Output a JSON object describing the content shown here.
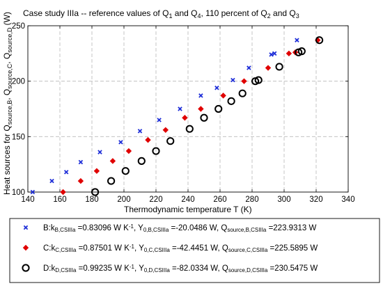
{
  "chart_data": {
    "type": "scatter",
    "title": {
      "parts": [
        {
          "t": "Case study IIIa -- reference values of Q",
          "s": ""
        },
        {
          "t": "1",
          "s": "sub"
        },
        {
          "t": " and Q",
          "s": ""
        },
        {
          "t": "4",
          "s": "sub"
        },
        {
          "t": ", 110 percent of Q",
          "s": ""
        },
        {
          "t": "2",
          "s": "sub"
        },
        {
          "t": " and Q",
          "s": ""
        },
        {
          "t": "3",
          "s": "sub"
        }
      ]
    },
    "xlabel": "Thermodynamic temperature T (K)",
    "ylabel": {
      "parts": [
        {
          "t": "Heat sources for Q",
          "s": ""
        },
        {
          "t": "source,B",
          "s": "sub"
        },
        {
          "t": ", Q",
          "s": ""
        },
        {
          "t": "source,C",
          "s": "sub"
        },
        {
          "t": ", Q",
          "s": ""
        },
        {
          "t": "source,D",
          "s": "sub"
        },
        {
          "t": " (W)",
          "s": ""
        }
      ]
    },
    "xlim": [
      140,
      340
    ],
    "ylim": [
      100,
      250
    ],
    "xticks": [
      140,
      160,
      180,
      200,
      220,
      240,
      260,
      280,
      300,
      320,
      340
    ],
    "yticks": [
      100,
      150,
      200,
      250
    ],
    "grid": true,
    "legend_position": "below",
    "series": [
      {
        "key": "B",
        "marker": "x",
        "color": "#1f2fd8",
        "legend_parts": [
          {
            "t": "B:k",
            "s": ""
          },
          {
            "t": "B,CSIIIa",
            "s": "sub"
          },
          {
            "t": " =0.83096 W K",
            "s": ""
          },
          {
            "t": "-1",
            "s": "sup"
          },
          {
            "t": ", Y",
            "s": ""
          },
          {
            "t": "0,B,CSIIIa",
            "s": "sub"
          },
          {
            "t": " =-20.0486 W, Q",
            "s": ""
          },
          {
            "t": "source,B,CSIIIa",
            "s": "sub"
          },
          {
            "t": " =223.9313 W",
            "s": ""
          }
        ],
        "x": [
          143,
          155,
          164,
          173,
          185,
          198,
          210,
          222,
          235,
          248,
          258,
          268,
          278,
          292,
          294,
          308
        ],
        "y": [
          100,
          110,
          118,
          127,
          136,
          145,
          155,
          165,
          175,
          187,
          194,
          201,
          212,
          224,
          225,
          237
        ]
      },
      {
        "key": "C",
        "marker": "diamond",
        "color": "#e00000",
        "legend_parts": [
          {
            "t": "C:k",
            "s": ""
          },
          {
            "t": "C,CSIIIa",
            "s": "sub"
          },
          {
            "t": " =0.87501 W K",
            "s": ""
          },
          {
            "t": "-1",
            "s": "sup"
          },
          {
            "t": ", Y",
            "s": ""
          },
          {
            "t": "0,C,CSIIIa",
            "s": "sub"
          },
          {
            "t": " =-42.4451 W, Q",
            "s": ""
          },
          {
            "t": "source,C,CSIIIa",
            "s": "sub"
          },
          {
            "t": " =225.5895 W",
            "s": ""
          }
        ],
        "x": [
          162,
          173,
          183,
          193,
          203,
          215,
          226,
          238,
          248,
          262,
          275,
          290,
          303,
          307,
          321
        ],
        "y": [
          100,
          110,
          119,
          128,
          137,
          147,
          156,
          167,
          175,
          187,
          200,
          212,
          225,
          226,
          237
        ]
      },
      {
        "key": "D",
        "marker": "circle",
        "color": "#000000",
        "legend_parts": [
          {
            "t": "D:k",
            "s": ""
          },
          {
            "t": "D,CSIIIa",
            "s": "sub"
          },
          {
            "t": " =0.99235 W K",
            "s": ""
          },
          {
            "t": "-1",
            "s": "sup"
          },
          {
            "t": ", Y",
            "s": ""
          },
          {
            "t": "0,D,CSIIIa",
            "s": "sub"
          },
          {
            "t": " =-82.0334 W, Q",
            "s": ""
          },
          {
            "t": "source,D,CSIIIa",
            "s": "sub"
          },
          {
            "t": " =230.5475 W",
            "s": ""
          }
        ],
        "x": [
          182,
          192,
          201,
          211,
          220,
          229,
          241,
          250,
          259,
          267,
          274,
          282,
          284,
          297,
          309,
          311,
          322
        ],
        "y": [
          100,
          110,
          119,
          128,
          137,
          146,
          157,
          167,
          175,
          182,
          189,
          200,
          201,
          213,
          226,
          227,
          237
        ]
      }
    ]
  }
}
